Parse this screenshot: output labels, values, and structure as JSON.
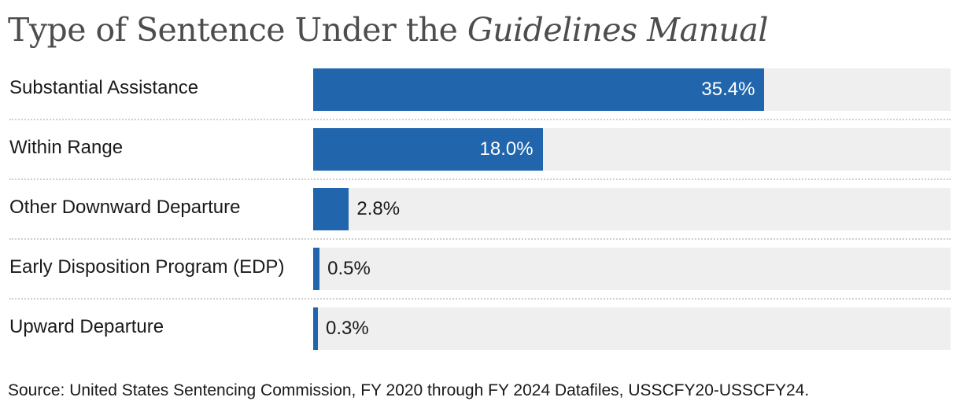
{
  "title": {
    "prefix": "Type of Sentence Under the ",
    "emphasis": "Guidelines Manual"
  },
  "source": "Source: United States Sentencing Commission, FY 2020 through FY 2024 Datafiles, USSCFY20-USSCFY24.",
  "colors": {
    "bar": "#2166ac",
    "track": "#efefef"
  },
  "chart_data": {
    "type": "bar",
    "orientation": "horizontal",
    "title": "Type of Sentence Under the Guidelines Manual",
    "categories": [
      "Substantial Assistance",
      "Within Range",
      "Other Downward Departure",
      "Early Disposition Program (EDP)",
      "Upward Departure"
    ],
    "values": [
      35.4,
      18.0,
      2.8,
      0.5,
      0.3
    ],
    "value_labels": [
      "35.4%",
      "18.0%",
      "2.8%",
      "0.5%",
      "0.3%"
    ],
    "unit": "%",
    "xlim": [
      0,
      50
    ],
    "grid": false,
    "legend": "none"
  }
}
